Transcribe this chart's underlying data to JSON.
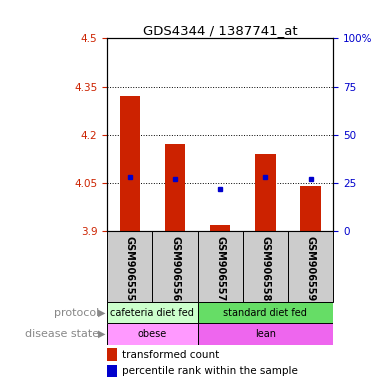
{
  "title": "GDS4344 / 1387741_at",
  "samples": [
    "GSM906555",
    "GSM906556",
    "GSM906557",
    "GSM906558",
    "GSM906559"
  ],
  "transformed_counts": [
    4.32,
    4.17,
    3.92,
    4.14,
    4.04
  ],
  "percentile_ranks": [
    28,
    27,
    22,
    28,
    27
  ],
  "bar_bottom": 3.9,
  "ylim_left": [
    3.9,
    4.5
  ],
  "ylim_right": [
    0,
    100
  ],
  "yticks_left": [
    3.9,
    4.05,
    4.2,
    4.35,
    4.5
  ],
  "yticks_right": [
    0,
    25,
    50,
    75,
    100
  ],
  "ytick_labels_left": [
    "3.9",
    "4.05",
    "4.2",
    "4.35",
    "4.5"
  ],
  "ytick_labels_right": [
    "0",
    "25",
    "50",
    "75",
    "100%"
  ],
  "dotted_lines": [
    4.05,
    4.2,
    4.35
  ],
  "protocol_groups": [
    {
      "label": "cafeteria diet fed",
      "color": "#ccffcc",
      "start": 0,
      "end": 2
    },
    {
      "label": "standard diet fed",
      "color": "#66dd66",
      "start": 2,
      "end": 5
    }
  ],
  "disease_groups": [
    {
      "label": "obese",
      "color": "#ff99ff",
      "start": 0,
      "end": 2
    },
    {
      "label": "lean",
      "color": "#ee66ee",
      "start": 2,
      "end": 5
    }
  ],
  "bar_color": "#cc2200",
  "dot_color": "#0000cc",
  "label_color_left": "#cc2200",
  "label_color_right": "#0000cc",
  "xticklabel_bg": "#cccccc",
  "row_label_color": "#888888"
}
